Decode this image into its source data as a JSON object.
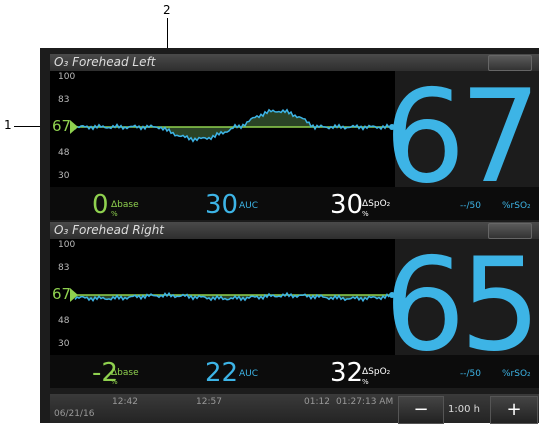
{
  "callouts": [
    "1",
    "2"
  ],
  "panels": [
    {
      "title": "O₃ Forehead Left",
      "y_labels": [
        "100",
        "83",
        "67",
        "48",
        "30"
      ],
      "value": "67",
      "delta_base": "0",
      "delta_base_label": "Δbase",
      "delta_unit": "%",
      "auc": "30",
      "auc_label": "AUC",
      "spo2": "30",
      "spo2_label": "ΔSpO₂",
      "spo2_unit": "%",
      "limit": "--/50",
      "unit": "%rSO₂"
    },
    {
      "title": "O₃ Forehead Right",
      "y_labels": [
        "100",
        "83",
        "67",
        "48",
        "30"
      ],
      "value": "65",
      "delta_base": "-2",
      "delta_base_label": "Δbase",
      "delta_unit": "%",
      "auc": "22",
      "auc_label": "AUC",
      "spo2": "32",
      "spo2_label": "ΔSpO₂",
      "spo2_unit": "%",
      "limit": "--/50",
      "unit": "%rSO₂"
    }
  ],
  "timeline": {
    "times": [
      "12:42",
      "12:57",
      "01:12",
      "01:27:13 AM"
    ],
    "date": "06/21/16",
    "minus": "−",
    "zoom": "1:00 h",
    "plus": "+"
  }
}
